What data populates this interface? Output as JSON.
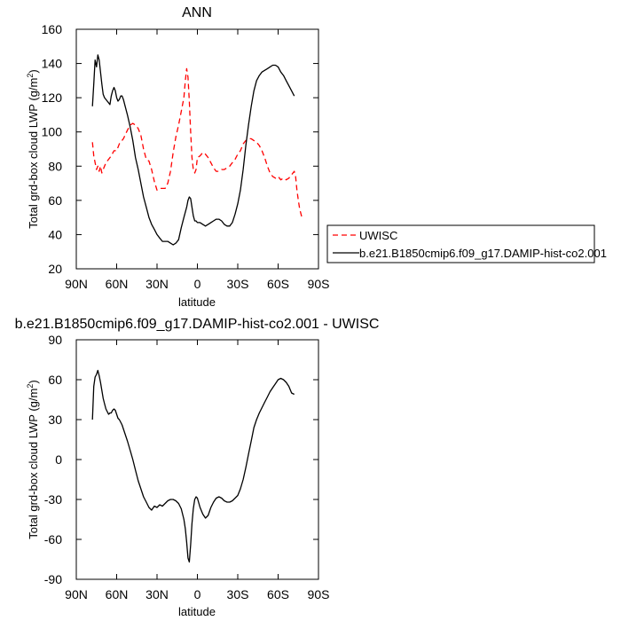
{
  "chart_data": [
    {
      "type": "line",
      "title": "ANN",
      "xlabel": "latitude",
      "ylabel": "Total grd-box cloud LWP (g/m",
      "ylabel_sup": "2",
      "ylabel_close": ")",
      "xlim": [
        90,
        -90
      ],
      "ylim": [
        20,
        160
      ],
      "x_ticks": [
        90,
        60,
        30,
        0,
        -30,
        -60,
        -90
      ],
      "x_tick_labels": [
        "90N",
        "60N",
        "30N",
        "0",
        "30S",
        "60S",
        "90S"
      ],
      "y_ticks": [
        20,
        40,
        60,
        80,
        100,
        120,
        140,
        160
      ],
      "y_tick_labels": [
        "20",
        "40",
        "60",
        "80",
        "100",
        "120",
        "140",
        "160"
      ],
      "grid": false,
      "legend_position": "right",
      "series": [
        {
          "name": "UWISC",
          "color": "#ff0000",
          "dash": true,
          "x": [
            78,
            77,
            76,
            75,
            74,
            73,
            72,
            71,
            70,
            68,
            66,
            64,
            62,
            60,
            58,
            55,
            52,
            50,
            48,
            46,
            44,
            42,
            40,
            38,
            36,
            34,
            32,
            30,
            28,
            26,
            24,
            22,
            20,
            18,
            16,
            14,
            12,
            10,
            9,
            8,
            7,
            6,
            5,
            4,
            3,
            2,
            1,
            0,
            -2,
            -4,
            -6,
            -8,
            -10,
            -12,
            -14,
            -16,
            -18,
            -20,
            -22,
            -24,
            -26,
            -28,
            -30,
            -32,
            -34,
            -36,
            -38,
            -40,
            -42,
            -44,
            -46,
            -48,
            -50,
            -52,
            -54,
            -56,
            -58,
            -60,
            -62,
            -64,
            -66,
            -68,
            -70,
            -72,
            -73,
            -74,
            -75,
            -76,
            -77,
            -78
          ],
          "y": [
            94,
            86,
            82,
            78,
            80,
            77,
            80,
            76,
            78,
            82,
            84,
            86,
            89,
            89,
            93,
            96,
            101,
            104,
            105,
            104,
            102,
            98,
            90,
            84,
            83,
            78,
            71,
            66,
            67,
            67,
            67,
            70,
            77,
            88,
            97,
            104,
            112,
            120,
            130,
            137,
            132,
            118,
            100,
            85,
            78,
            76,
            78,
            85,
            86,
            88,
            87,
            85,
            82,
            79,
            77,
            77,
            78,
            78,
            79,
            80,
            82,
            84,
            87,
            89,
            93,
            95,
            96,
            96,
            95,
            94,
            92,
            89,
            85,
            80,
            76,
            74,
            73,
            74,
            72,
            73,
            72,
            73,
            75,
            77,
            74,
            66,
            60,
            55,
            52,
            49
          ]
        },
        {
          "name": "b.e21.B1850cmip6.f09_g17.DAMIP-hist-co2.001",
          "color": "#000000",
          "dash": false,
          "x": [
            78,
            77,
            76,
            75,
            74,
            73,
            72,
            71,
            70,
            69,
            68,
            67,
            66,
            65,
            64,
            63,
            62,
            61,
            60,
            59,
            58,
            57,
            56,
            55,
            54,
            52,
            50,
            48,
            46,
            44,
            42,
            40,
            38,
            36,
            34,
            32,
            30,
            28,
            26,
            24,
            22,
            20,
            18,
            16,
            14,
            12,
            10,
            8,
            7,
            6,
            5,
            4,
            3,
            2,
            1,
            0,
            -2,
            -4,
            -6,
            -8,
            -10,
            -12,
            -14,
            -16,
            -18,
            -20,
            -22,
            -24,
            -26,
            -28,
            -30,
            -32,
            -34,
            -36,
            -38,
            -40,
            -42,
            -44,
            -46,
            -48,
            -50,
            -52,
            -54,
            -56,
            -58,
            -60,
            -62,
            -64,
            -66,
            -68,
            -70,
            -72
          ],
          "y": [
            115,
            128,
            142,
            138,
            145,
            142,
            135,
            128,
            122,
            120,
            119,
            118,
            117,
            116,
            121,
            124,
            126,
            124,
            120,
            118,
            119,
            121,
            121,
            119,
            116,
            110,
            103,
            95,
            85,
            78,
            70,
            62,
            56,
            50,
            46,
            43,
            40,
            38,
            36,
            36,
            36,
            35,
            34,
            35,
            37,
            44,
            50,
            56,
            60,
            62,
            61,
            56,
            51,
            48,
            48,
            47,
            47,
            46,
            45,
            46,
            47,
            48,
            49,
            49,
            48,
            46,
            45,
            45,
            47,
            52,
            58,
            66,
            78,
            92,
            104,
            115,
            124,
            130,
            133,
            135,
            136,
            137,
            138,
            139,
            139,
            138,
            135,
            133,
            130,
            127,
            124,
            121
          ]
        }
      ]
    },
    {
      "type": "line",
      "title": "b.e21.B1850cmip6.f09_g17.DAMIP-hist-co2.001 - UWISC",
      "xlabel": "latitude",
      "ylabel": "Total grd-box cloud LWP (g/m",
      "ylabel_sup": "2",
      "ylabel_close": ")",
      "xlim": [
        90,
        -90
      ],
      "ylim": [
        -90,
        90
      ],
      "x_ticks": [
        90,
        60,
        30,
        0,
        -30,
        -60,
        -90
      ],
      "x_tick_labels": [
        "90N",
        "60N",
        "30N",
        "0",
        "30S",
        "60S",
        "90S"
      ],
      "y_ticks": [
        -90,
        -60,
        -30,
        0,
        30,
        60,
        90
      ],
      "y_tick_labels": [
        "-90",
        "-60",
        "-30",
        "0",
        "30",
        "60",
        "90"
      ],
      "grid": false,
      "series": [
        {
          "color": "#000000",
          "dash": false,
          "x": [
            78,
            77,
            76,
            75,
            74,
            73,
            72,
            71,
            70,
            69,
            68,
            67,
            66,
            65,
            64,
            63,
            62,
            61,
            60,
            59,
            58,
            57,
            56,
            55,
            54,
            52,
            50,
            48,
            46,
            44,
            42,
            40,
            38,
            36,
            34,
            32,
            30,
            28,
            26,
            24,
            22,
            20,
            18,
            16,
            14,
            12,
            10,
            9,
            8,
            7,
            6,
            5,
            4,
            3,
            2,
            1,
            0,
            -2,
            -4,
            -6,
            -8,
            -10,
            -12,
            -14,
            -16,
            -18,
            -20,
            -22,
            -24,
            -26,
            -28,
            -30,
            -32,
            -34,
            -36,
            -38,
            -40,
            -42,
            -44,
            -46,
            -48,
            -50,
            -52,
            -54,
            -56,
            -58,
            -60,
            -62,
            -64,
            -66,
            -68,
            -70,
            -72
          ],
          "y": [
            30,
            55,
            62,
            64,
            67,
            63,
            58,
            52,
            46,
            42,
            38,
            36,
            34,
            35,
            35,
            37,
            38,
            37,
            34,
            31,
            30,
            28,
            26,
            23,
            20,
            14,
            7,
            0,
            -8,
            -16,
            -22,
            -28,
            -32,
            -36,
            -38,
            -35,
            -36,
            -34,
            -35,
            -33,
            -31,
            -30,
            -30,
            -31,
            -33,
            -37,
            -45,
            -52,
            -62,
            -74,
            -77,
            -64,
            -48,
            -37,
            -30,
            -28,
            -29,
            -36,
            -41,
            -44,
            -42,
            -36,
            -32,
            -29,
            -28,
            -29,
            -31,
            -32,
            -32,
            -31,
            -29,
            -27,
            -22,
            -15,
            -6,
            4,
            14,
            24,
            30,
            35,
            39,
            43,
            47,
            51,
            54,
            57,
            60,
            61,
            60,
            58,
            55,
            50,
            49
          ]
        }
      ]
    }
  ]
}
